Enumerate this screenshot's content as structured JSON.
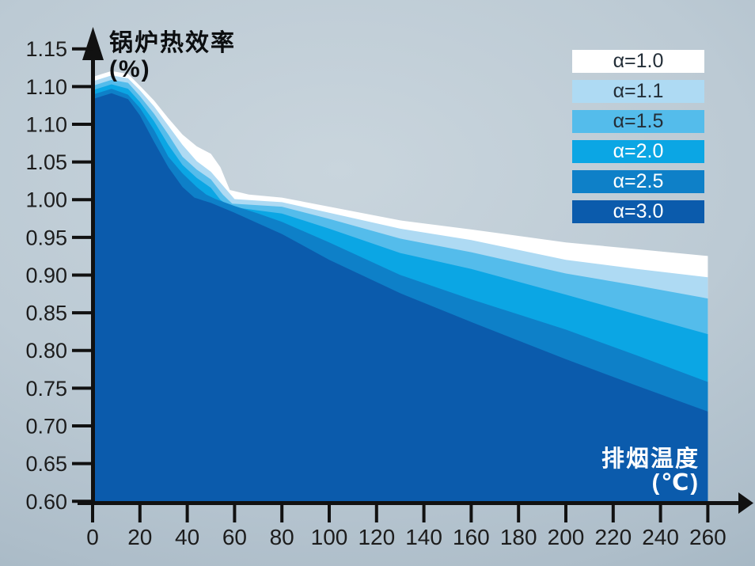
{
  "chart_data": {
    "type": "area",
    "description": "Stacked band chart of boiler thermal efficiency vs flue gas exhaust temperature for different excess-air coefficients",
    "y_axis": {
      "label": "锅炉热效率",
      "unit": "(%)",
      "tick_labels_top_to_bottom": [
        "1.15",
        "1.10",
        "1.10",
        "1.05",
        "1.00",
        "0.95",
        "0.90",
        "0.85",
        "0.80",
        "0.75",
        "0.70",
        "0.65",
        "0.60"
      ],
      "range_as_labeled": [
        0.6,
        1.15
      ]
    },
    "x_axis": {
      "label": "排烟温度",
      "unit": "(℃)",
      "ticks": [
        0,
        20,
        40,
        60,
        80,
        100,
        120,
        140,
        160,
        180,
        200,
        220,
        240,
        260
      ],
      "tick_labels": [
        "0",
        "20",
        "40",
        "60",
        "80",
        "100",
        "120",
        "140",
        "160",
        "180",
        "200",
        "220",
        "240",
        "260"
      ],
      "range": [
        0,
        260
      ]
    },
    "legend": {
      "position": "top-right"
    },
    "series": [
      {
        "label": "α=1.0",
        "alpha": 1.0,
        "color": "#ffffff",
        "legend_text_color": "#232e38",
        "points": [
          [
            0,
            1.106
          ],
          [
            8,
            1.11
          ],
          [
            15,
            1.108
          ],
          [
            20,
            1.1
          ],
          [
            26,
            1.09
          ],
          [
            32,
            1.078
          ],
          [
            38,
            1.067
          ],
          [
            44,
            1.059
          ],
          [
            50,
            1.054
          ],
          [
            54,
            1.04
          ],
          [
            58,
            1.01
          ],
          [
            66,
            1.004
          ],
          [
            80,
            1.0
          ],
          [
            100,
            0.988
          ],
          [
            130,
            0.97
          ],
          [
            160,
            0.958
          ],
          [
            200,
            0.941
          ],
          [
            230,
            0.932
          ],
          [
            260,
            0.923
          ]
        ]
      },
      {
        "label": "α=1.1",
        "alpha": 1.1,
        "color": "#aedaf3",
        "legend_text_color": "#232e38",
        "points": [
          [
            0,
            1.103
          ],
          [
            8,
            1.107
          ],
          [
            15,
            1.105
          ],
          [
            20,
            1.097
          ],
          [
            26,
            1.086
          ],
          [
            32,
            1.073
          ],
          [
            38,
            1.06
          ],
          [
            44,
            1.048
          ],
          [
            50,
            1.034
          ],
          [
            55,
            1.016
          ],
          [
            60,
            0.998
          ],
          [
            70,
            0.996
          ],
          [
            80,
            0.994
          ],
          [
            100,
            0.98
          ],
          [
            130,
            0.959
          ],
          [
            160,
            0.944
          ],
          [
            200,
            0.918
          ],
          [
            230,
            0.906
          ],
          [
            260,
            0.895
          ]
        ]
      },
      {
        "label": "α=1.5",
        "alpha": 1.5,
        "color": "#54bceb",
        "legend_text_color": "#232e38",
        "points": [
          [
            0,
            1.1
          ],
          [
            8,
            1.104
          ],
          [
            15,
            1.102
          ],
          [
            20,
            1.093
          ],
          [
            26,
            1.081
          ],
          [
            32,
            1.067
          ],
          [
            38,
            1.052
          ],
          [
            44,
            1.037
          ],
          [
            50,
            1.024
          ],
          [
            55,
            1.004
          ],
          [
            59,
            0.992
          ],
          [
            70,
            0.99
          ],
          [
            80,
            0.988
          ],
          [
            100,
            0.972
          ],
          [
            130,
            0.946
          ],
          [
            160,
            0.928
          ],
          [
            200,
            0.9
          ],
          [
            230,
            0.884
          ],
          [
            260,
            0.867
          ]
        ]
      },
      {
        "label": "α=2.0",
        "alpha": 2.0,
        "color": "#0ba6e4",
        "legend_text_color": "#ffffff",
        "points": [
          [
            0,
            1.097
          ],
          [
            8,
            1.101
          ],
          [
            15,
            1.098
          ],
          [
            20,
            1.089
          ],
          [
            26,
            1.076
          ],
          [
            32,
            1.06
          ],
          [
            38,
            1.043
          ],
          [
            44,
            1.026
          ],
          [
            50,
            1.013
          ],
          [
            54,
            0.997
          ],
          [
            58,
            0.988
          ],
          [
            70,
            0.983
          ],
          [
            80,
            0.979
          ],
          [
            100,
            0.959
          ],
          [
            130,
            0.927
          ],
          [
            160,
            0.906
          ],
          [
            200,
            0.872
          ],
          [
            230,
            0.846
          ],
          [
            260,
            0.82
          ]
        ]
      },
      {
        "label": "α=2.5",
        "alpha": 2.5,
        "color": "#0e80c8",
        "legend_text_color": "#ffffff",
        "points": [
          [
            0,
            1.094
          ],
          [
            8,
            1.098
          ],
          [
            15,
            1.094
          ],
          [
            20,
            1.085
          ],
          [
            26,
            1.07
          ],
          [
            32,
            1.052
          ],
          [
            38,
            1.032
          ],
          [
            44,
            1.014
          ],
          [
            48,
            1.004
          ],
          [
            52,
            0.998
          ],
          [
            60,
            0.989
          ],
          [
            70,
            0.979
          ],
          [
            80,
            0.968
          ],
          [
            100,
            0.941
          ],
          [
            130,
            0.898
          ],
          [
            160,
            0.866
          ],
          [
            200,
            0.826
          ],
          [
            230,
            0.792
          ],
          [
            260,
            0.757
          ]
        ]
      },
      {
        "label": "α=3.0",
        "alpha": 3.0,
        "color": "#0b5bac",
        "legend_text_color": "#ffffff",
        "points": [
          [
            0,
            1.091
          ],
          [
            8,
            1.095
          ],
          [
            15,
            1.091
          ],
          [
            20,
            1.08
          ],
          [
            26,
            1.062
          ],
          [
            32,
            1.04
          ],
          [
            38,
            1.014
          ],
          [
            43,
            1.0
          ],
          [
            47,
            0.996
          ],
          [
            50,
            0.993
          ],
          [
            60,
            0.98
          ],
          [
            70,
            0.966
          ],
          [
            80,
            0.952
          ],
          [
            100,
            0.918
          ],
          [
            130,
            0.874
          ],
          [
            160,
            0.836
          ],
          [
            200,
            0.787
          ],
          [
            230,
            0.752
          ],
          [
            260,
            0.718
          ]
        ]
      }
    ],
    "markers": [
      {
        "x": 20,
        "top_value": 1.1,
        "gradient": [
          "#ffffff",
          "#ffffff"
        ]
      },
      {
        "x": 50,
        "top_value": 1.06,
        "gradient": [
          "#cdd75a",
          "#7cc97e",
          "#abdeae"
        ]
      },
      {
        "x": 130,
        "top_value": 0.976,
        "gradient": [
          "#cdd75a",
          "#7cc97e",
          "#abdeae"
        ]
      }
    ],
    "axis_color": "#111111",
    "tick_label_color": "#1c1c1c"
  }
}
